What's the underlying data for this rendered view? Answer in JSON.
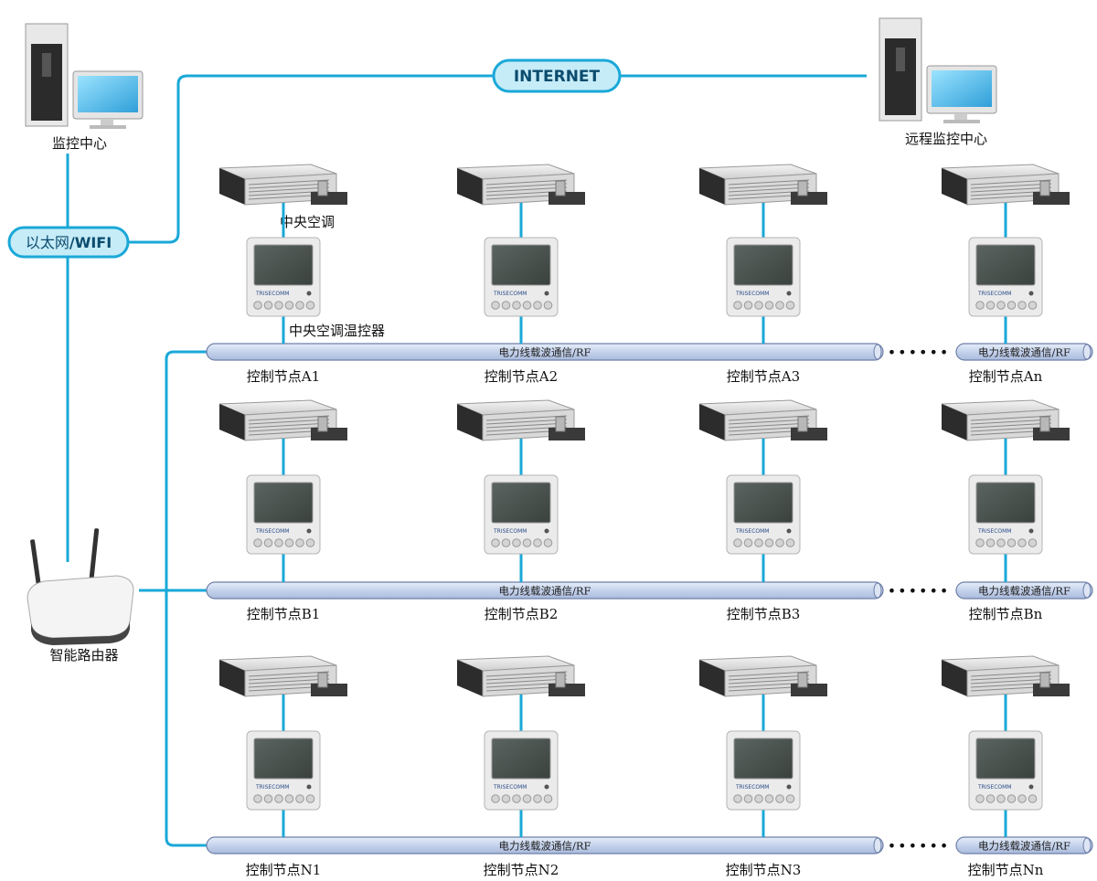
{
  "top": {
    "monitor_center_label": "监控中心",
    "remote_center_label": "远程监控中心",
    "internet_label": "INTERNET",
    "ethernet_label_cn": "以太网",
    "ethernet_label_en": "/WIFI",
    "router_label": "智能路由器"
  },
  "annotations": {
    "ac_label": "中央空调",
    "thermostat_label": "中央空调温控器"
  },
  "brand": "TRISECOMM",
  "bus_label": "电力线载波通信/RF",
  "dots": "••••••",
  "rows": [
    {
      "id": "A",
      "nodes": [
        "控制节点A1",
        "控制节点A2",
        "控制节点A3",
        "控制节点An"
      ]
    },
    {
      "id": "B",
      "nodes": [
        "控制节点B1",
        "控制节点B2",
        "控制节点B3",
        "控制节点Bn"
      ]
    },
    {
      "id": "N",
      "nodes": [
        "控制节点N1",
        "控制节点N2",
        "控制节点N3",
        "控制节点Nn"
      ]
    }
  ],
  "colors": {
    "link": "#1aa8d8",
    "pill_fill": "#c6ecf8",
    "pill_stroke": "#1aa8d8",
    "bus_fill": "#c9d6ee",
    "bus_stroke": "#6d7fa8"
  }
}
